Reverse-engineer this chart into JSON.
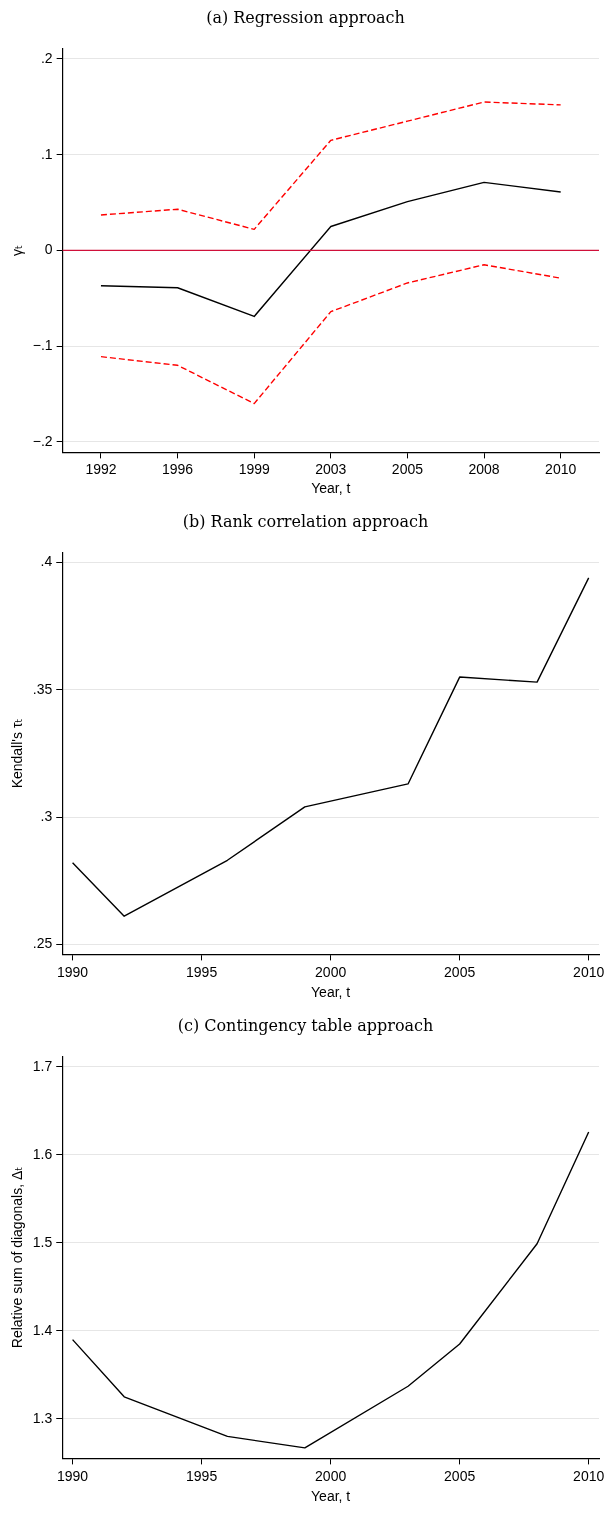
{
  "chart_data": [
    {
      "type": "line",
      "title": "(a) Regression approach",
      "xlabel": "Year, t",
      "ylabel": "γₜ",
      "categories": [
        "1992",
        "1996",
        "1999",
        "2003",
        "2005",
        "2008",
        "2010"
      ],
      "ylim": [
        -0.211,
        0.211
      ],
      "yticks": [
        {
          "value": -0.2,
          "label": "−.2"
        },
        {
          "value": -0.1,
          "label": "−.1"
        },
        0,
        {
          "value": 0.1,
          "label": ".1"
        },
        {
          "value": 0.2,
          "label": ".2"
        }
      ],
      "grid": "y",
      "series": [
        {
          "color": "#000000",
          "line_style": "solid",
          "values": [
            -0.037,
            -0.039,
            -0.069,
            0.025,
            0.051,
            0.071,
            0.061
          ]
        },
        {
          "color": "#ff0000",
          "line_style": "dashed",
          "values": [
            0.037,
            0.043,
            0.022,
            0.115,
            0.135,
            0.155,
            0.152
          ]
        },
        {
          "color": "#ff0000",
          "line_style": "dashed",
          "values": [
            -0.111,
            -0.12,
            -0.16,
            -0.064,
            -0.034,
            -0.015,
            -0.029
          ]
        }
      ],
      "ref_lines": [
        {
          "axis": "y",
          "value": 0,
          "color": "#d0103a"
        }
      ]
    },
    {
      "type": "line",
      "title": "(b) Rank correlation approach",
      "xlabel": "Year, t",
      "ylabel": "Kendall's τₜ",
      "xlim": [
        1989.6,
        2010.4
      ],
      "xticks": [
        1990,
        1995,
        2000,
        2005,
        2010
      ],
      "ylim": [
        0.246,
        0.404
      ],
      "yticks": [
        {
          "value": 0.25,
          "label": ".25"
        },
        {
          "value": 0.3,
          "label": ".3"
        },
        {
          "value": 0.35,
          "label": ".35"
        },
        {
          "value": 0.4,
          "label": ".4"
        }
      ],
      "grid": "y",
      "series": [
        {
          "color": "#000000",
          "line_style": "solid",
          "x": [
            1990,
            1992,
            1996,
            1999,
            2003,
            2005,
            2008,
            2010
          ],
          "values": [
            0.282,
            0.261,
            0.283,
            0.304,
            0.313,
            0.355,
            0.353,
            0.394
          ]
        }
      ]
    },
    {
      "type": "line",
      "title": "(c) Contingency table approach",
      "xlabel": "Year, t",
      "ylabel": "Relative sum of diagonals, Δₜ",
      "xlim": [
        1989.6,
        2010.4
      ],
      "xticks": [
        1990,
        1995,
        2000,
        2005,
        2010
      ],
      "ylim": [
        1.255,
        1.712
      ],
      "yticks": [
        1.3,
        1.4,
        1.5,
        1.6,
        1.7
      ],
      "grid": "y",
      "series": [
        {
          "color": "#000000",
          "line_style": "solid",
          "x": [
            1990,
            1992,
            1996,
            1999,
            2003,
            2005,
            2008,
            2010
          ],
          "values": [
            1.39,
            1.325,
            1.28,
            1.267,
            1.337,
            1.385,
            1.499,
            1.626
          ]
        }
      ]
    }
  ]
}
